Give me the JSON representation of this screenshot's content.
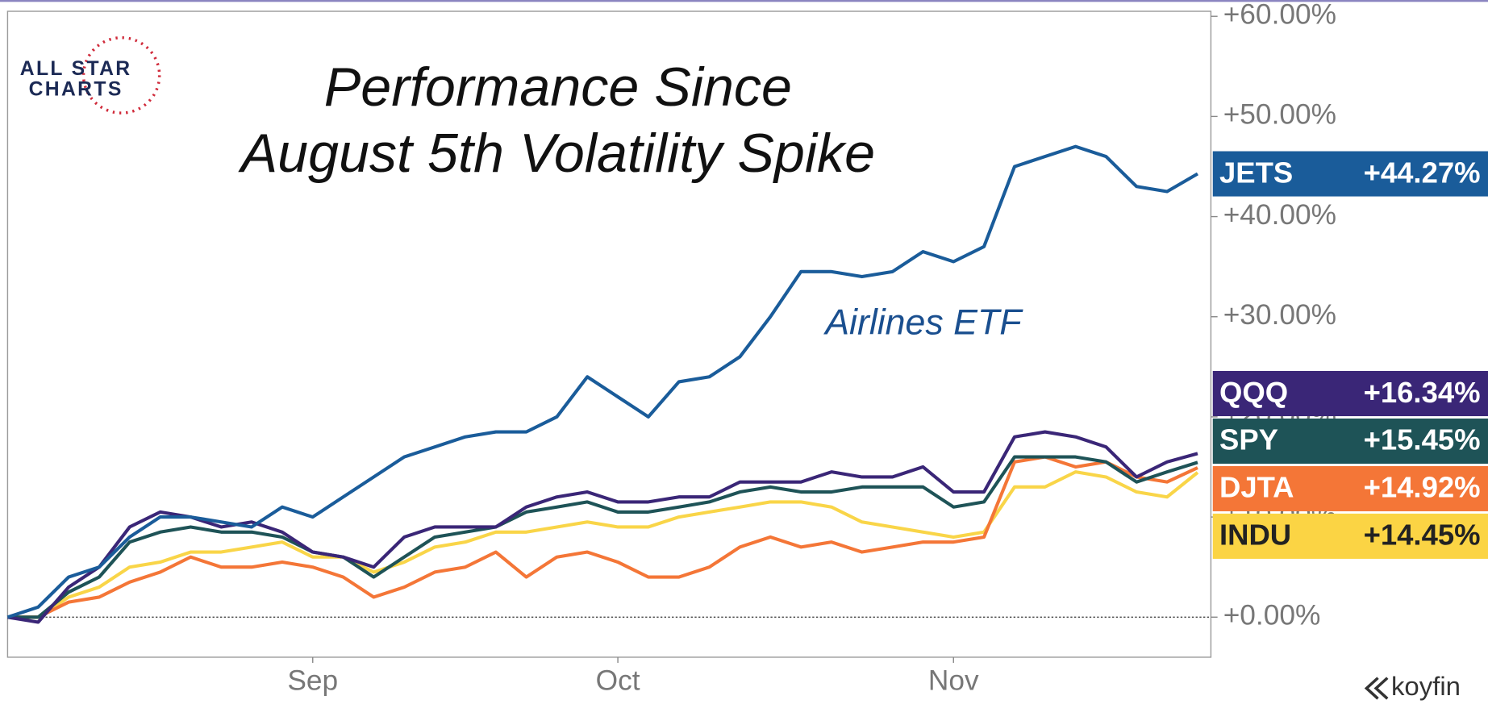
{
  "chart_data": {
    "type": "line",
    "title": [
      "Performance Since",
      "August 5th Volatility Spike"
    ],
    "annotation": "Airlines ETF",
    "logo": [
      "ALL STAR",
      "CHARTS"
    ],
    "brand": "koyfin",
    "categories": [
      null,
      null,
      null,
      null,
      null,
      null,
      null,
      null,
      null,
      null,
      "Sep",
      null,
      null,
      null,
      null,
      null,
      null,
      null,
      null,
      null,
      "Oct",
      null,
      null,
      null,
      null,
      null,
      null,
      null,
      null,
      null,
      null,
      "Nov",
      null,
      null,
      null,
      null,
      null,
      null,
      null,
      null
    ],
    "series": [
      {
        "name": "JETS",
        "color": "#1a5c9a",
        "end_label": "+44.27%",
        "values": [
          0,
          1,
          4,
          5,
          8,
          10,
          10,
          9.5,
          9,
          11,
          10,
          12,
          14,
          16,
          17,
          18,
          18.5,
          18.5,
          20,
          24,
          22,
          20,
          23.5,
          24,
          26,
          30,
          34.5,
          34.5,
          34,
          34.5,
          36.5,
          35.5,
          37,
          45,
          46,
          47,
          46,
          43,
          42.5,
          44.27
        ]
      },
      {
        "name": "QQQ",
        "color": "#3a2677",
        "end_label": "+16.34%",
        "values": [
          0,
          -0.5,
          3,
          5,
          9,
          10.5,
          10,
          9,
          9.5,
          8.5,
          6.5,
          6,
          5,
          8,
          9,
          9,
          9,
          11,
          12,
          12.5,
          11.5,
          11.5,
          12,
          12,
          13.5,
          13.5,
          13.5,
          14.5,
          14,
          14,
          15,
          12.5,
          12.5,
          18,
          18.5,
          18,
          17,
          14,
          15.5,
          16.34
        ]
      },
      {
        "name": "SPY",
        "color": "#1e5357",
        "end_label": "+15.45%",
        "values": [
          0,
          0,
          2.5,
          4,
          7.5,
          8.5,
          9,
          8.5,
          8.5,
          8,
          6.5,
          6,
          4,
          6,
          8,
          8.5,
          9,
          10.5,
          11,
          11.5,
          10.5,
          10.5,
          11,
          11.5,
          12.5,
          13,
          12.5,
          12.5,
          13,
          13,
          13,
          11,
          11.5,
          16,
          16,
          16,
          15.5,
          13.5,
          14.5,
          15.45
        ]
      },
      {
        "name": "DJTA",
        "color": "#f47637",
        "end_label": "+14.92%",
        "values": [
          0,
          0,
          1.5,
          2,
          3.5,
          4.5,
          6,
          5,
          5,
          5.5,
          5,
          4,
          2,
          3,
          4.5,
          5,
          6.5,
          4,
          6,
          6.5,
          5.5,
          4,
          4,
          5,
          7,
          8,
          7,
          7.5,
          6.5,
          7,
          7.5,
          7.5,
          8,
          15.5,
          16,
          15,
          15.5,
          14,
          13.5,
          14.92
        ]
      },
      {
        "name": "INDU",
        "color": "#f9d548",
        "end_label": "+14.45%",
        "values": [
          0,
          0,
          2,
          3,
          5,
          5.5,
          6.5,
          6.5,
          7,
          7.5,
          6,
          6,
          4.5,
          5.5,
          7,
          7.5,
          8.5,
          8.5,
          9,
          9.5,
          9,
          9,
          10,
          10.5,
          11,
          11.5,
          11.5,
          11,
          9.5,
          9,
          8.5,
          8,
          8.5,
          13,
          13,
          14.5,
          14,
          12.5,
          12,
          14.45
        ]
      }
    ],
    "ylim": [
      -4,
      60.5
    ],
    "yticks": [
      {
        "value": 0,
        "label": "+0.00%"
      },
      {
        "value": 10,
        "label": "+10.00%"
      },
      {
        "value": 20,
        "label": "+20.00%"
      },
      {
        "value": 30,
        "label": "+30.00%"
      },
      {
        "value": 40,
        "label": "+40.00%"
      },
      {
        "value": 50,
        "label": "+50.00%"
      },
      {
        "value": 60,
        "label": "+60.00%"
      }
    ]
  }
}
